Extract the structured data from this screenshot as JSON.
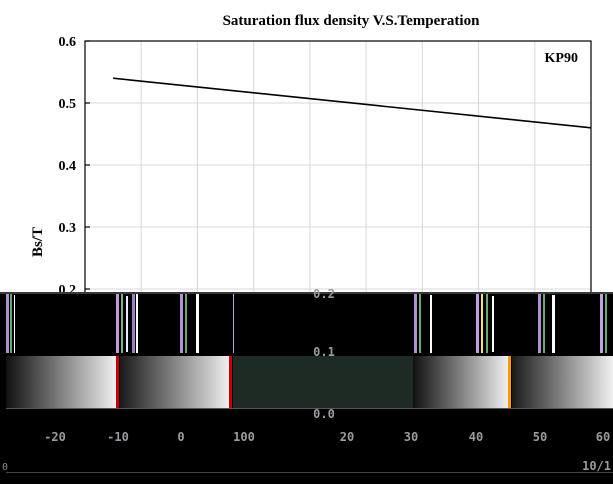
{
  "chart_data": {
    "type": "line",
    "title": "Saturation flux density V.S.Temperation",
    "ylabel": "Bs/T",
    "xlabel": "",
    "ylim": [
      0.0,
      0.6
    ],
    "xlim": [
      -20,
      160
    ],
    "yticks": [
      0.6,
      0.5,
      0.4,
      0.3,
      0.2
    ],
    "grid": true,
    "legend": {
      "placement": "top-right"
    },
    "series": [
      {
        "name": "KP90",
        "x": [
          -10,
          160
        ],
        "y": [
          0.54,
          0.46
        ]
      }
    ]
  },
  "corrupted_band": {
    "ticks_upper": [
      "0.2",
      "0.1",
      "0.0"
    ],
    "x_ticks": [
      "-20",
      "-10",
      "0",
      "100",
      "20",
      "30",
      "40",
      "50",
      "60"
    ],
    "corner_left": "0",
    "corner_right": "10/1"
  },
  "colors": {
    "line": "#000000",
    "grid": "#d8d8d8",
    "band_bg": "#000000"
  }
}
